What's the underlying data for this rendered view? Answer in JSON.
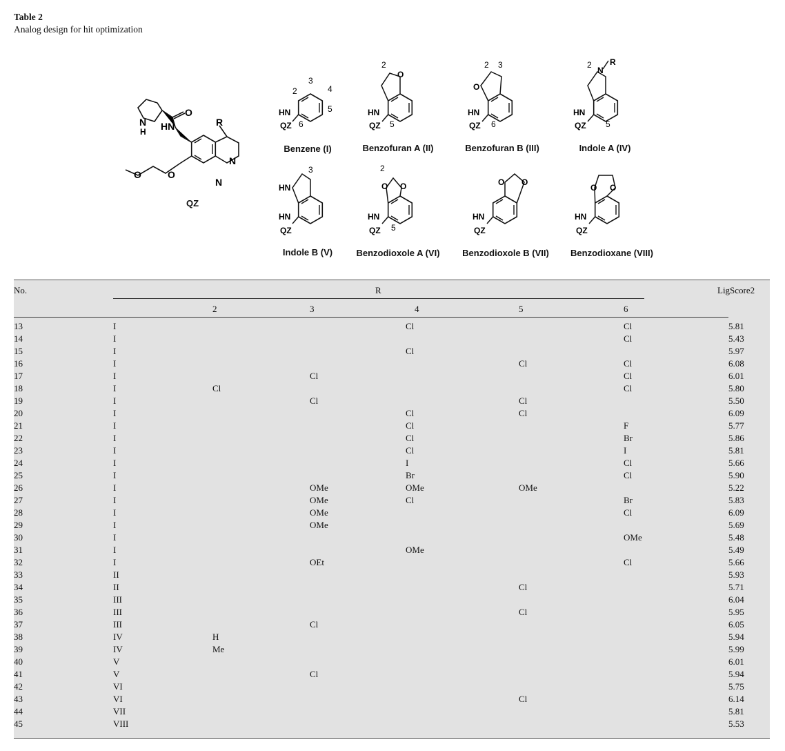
{
  "caption": {
    "title": "Table 2",
    "subtitle": "Analog design for hit optimization"
  },
  "scaffold_label": "QZ",
  "scaffolds": [
    "Benzene (I)",
    "Benzofuran A (II)",
    "Benzofuran B (III)",
    "Indole A (IV)",
    "Indole B (V)",
    "Benzodioxole A (VI)",
    "Benzodioxole B (VII)",
    "Benzodioxane (VIII)"
  ],
  "struct_text": {
    "hn": "HN",
    "qz": "QZ",
    "r": "R",
    "o": "O",
    "n": "N",
    "h": "H",
    "n2": "2",
    "n3": "3",
    "n4": "4",
    "n5": "5",
    "n6": "6"
  },
  "table": {
    "headers": {
      "no": "No.",
      "r": "R",
      "score": "LigScore2"
    },
    "positions": [
      "2",
      "3",
      "4",
      "5",
      "6"
    ],
    "rows": [
      [
        "13",
        "I",
        "",
        "",
        "Cl",
        "",
        "Cl",
        "5.81"
      ],
      [
        "14",
        "I",
        "",
        "",
        "",
        "",
        "Cl",
        "5.43"
      ],
      [
        "15",
        "I",
        "",
        "",
        "Cl",
        "",
        "",
        "5.97"
      ],
      [
        "16",
        "I",
        "",
        "",
        "",
        "Cl",
        "Cl",
        "6.08"
      ],
      [
        "17",
        "I",
        "",
        "Cl",
        "",
        "",
        "Cl",
        "6.01"
      ],
      [
        "18",
        "I",
        "Cl",
        "",
        "",
        "",
        "Cl",
        "5.80"
      ],
      [
        "19",
        "I",
        "",
        "Cl",
        "",
        "Cl",
        "",
        "5.50"
      ],
      [
        "20",
        "I",
        "",
        "",
        "Cl",
        "Cl",
        "",
        "6.09"
      ],
      [
        "21",
        "I",
        "",
        "",
        "Cl",
        "",
        "F",
        "5.77"
      ],
      [
        "22",
        "I",
        "",
        "",
        "Cl",
        "",
        "Br",
        "5.86"
      ],
      [
        "23",
        "I",
        "",
        "",
        "Cl",
        "",
        "I",
        "5.81"
      ],
      [
        "24",
        "I",
        "",
        "",
        "I",
        "",
        "Cl",
        "5.66"
      ],
      [
        "25",
        "I",
        "",
        "",
        "Br",
        "",
        "Cl",
        "5.90"
      ],
      [
        "26",
        "I",
        "",
        "OMe",
        "OMe",
        "OMe",
        "",
        "5.22"
      ],
      [
        "27",
        "I",
        "",
        "OMe",
        "Cl",
        "",
        "Br",
        "5.83"
      ],
      [
        "28",
        "I",
        "",
        "OMe",
        "",
        "",
        "Cl",
        "6.09"
      ],
      [
        "29",
        "I",
        "",
        "OMe",
        "",
        "",
        "",
        "5.69"
      ],
      [
        "30",
        "I",
        "",
        "",
        "",
        "",
        "OMe",
        "5.48"
      ],
      [
        "31",
        "I",
        "",
        "",
        "OMe",
        "",
        "",
        "5.49"
      ],
      [
        "32",
        "I",
        "",
        "OEt",
        "",
        "",
        "Cl",
        "5.66"
      ],
      [
        "33",
        "II",
        "",
        "",
        "",
        "",
        "",
        "5.93"
      ],
      [
        "34",
        "II",
        "",
        "",
        "",
        "Cl",
        "",
        "5.71"
      ],
      [
        "35",
        "III",
        "",
        "",
        "",
        "",
        "",
        "6.04"
      ],
      [
        "36",
        "III",
        "",
        "",
        "",
        "Cl",
        "",
        "5.95"
      ],
      [
        "37",
        "III",
        "",
        "Cl",
        "",
        "",
        "",
        "6.05"
      ],
      [
        "38",
        "IV",
        "H",
        "",
        "",
        "",
        "",
        "5.94"
      ],
      [
        "39",
        "IV",
        "Me",
        "",
        "",
        "",
        "",
        "5.99"
      ],
      [
        "40",
        "V",
        "",
        "",
        "",
        "",
        "",
        "6.01"
      ],
      [
        "41",
        "V",
        "",
        "Cl",
        "",
        "",
        "",
        "5.94"
      ],
      [
        "42",
        "VI",
        "",
        "",
        "",
        "",
        "",
        "5.75"
      ],
      [
        "43",
        "VI",
        "",
        "",
        "",
        "Cl",
        "",
        "6.14"
      ],
      [
        "44",
        "VII",
        "",
        "",
        "",
        "",
        "",
        "5.81"
      ],
      [
        "45",
        "VIII",
        "",
        "",
        "",
        "",
        "",
        "5.53"
      ]
    ]
  }
}
